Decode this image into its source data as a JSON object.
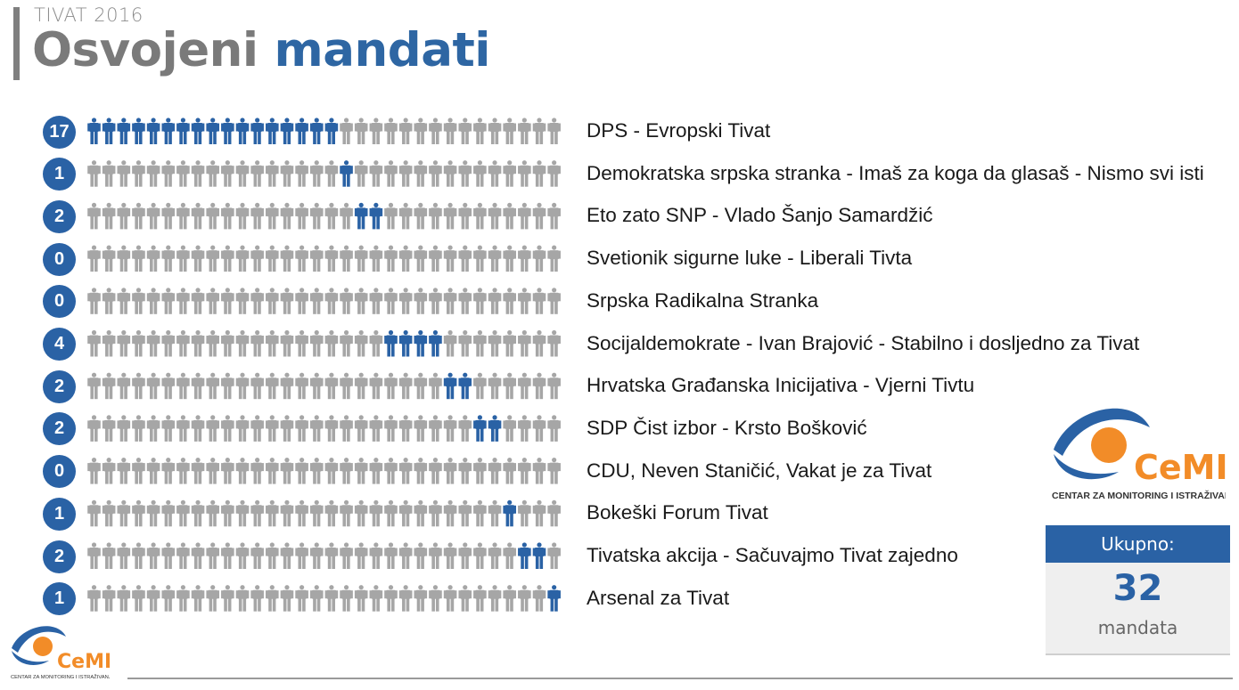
{
  "header": {
    "subtitle": "TIVAT 2016",
    "title_part1": "Osvojeni",
    "title_part2": "mandati"
  },
  "colors": {
    "accent": "#2a62a5",
    "inactive": "#a6a6a6",
    "logo_orange": "#f28c28",
    "logo_text_gray": "#7f7f7f"
  },
  "chart_data": {
    "type": "pictogram",
    "seats_per_row": 32,
    "series": [
      {
        "name": "DPS - Evropski Tivat",
        "seats": 17
      },
      {
        "name": "Demokratska srpska stranka - Imaš za koga da glasaš - Nismo svi isti",
        "seats": 1
      },
      {
        "name": "Eto zato SNP - Vlado Šanjo Samardžić",
        "seats": 2
      },
      {
        "name": "Svetionik sigurne luke - Liberali Tivta",
        "seats": 0
      },
      {
        "name": "Srpska Radikalna Stranka",
        "seats": 0
      },
      {
        "name": "Socijaldemokrate - Ivan Brajović - Stabilno i dosljedno za Tivat",
        "seats": 4
      },
      {
        "name": "Hrvatska Građanska Inicijativa - Vjerni Tivtu",
        "seats": 2
      },
      {
        "name": "SDP Čist izbor - Krsto Bošković",
        "seats": 2
      },
      {
        "name": "CDU, Neven Staničić, Vakat je za Tivat",
        "seats": 0
      },
      {
        "name": "Bokeški Forum Tivat",
        "seats": 1
      },
      {
        "name": "Tivatska akcija - Sačuvajmo Tivat zajedno",
        "seats": 2
      },
      {
        "name": "Arsenal za Tivat",
        "seats": 1
      }
    ]
  },
  "total": {
    "label": "Ukupno:",
    "value": "32",
    "unit": "mandata"
  },
  "logo": {
    "name": "CeMI",
    "tagline": "CENTAR ZA MONITORING I ISTRAŽIVANJE"
  }
}
